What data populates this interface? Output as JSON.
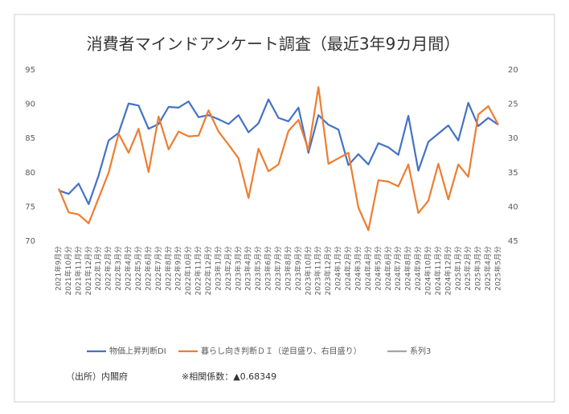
{
  "chart_data": {
    "type": "line",
    "title": "消費者マインドアンケート調査（最近3年9カ月間）",
    "categories": [
      "2021年9月分",
      "2021年10月分",
      "2021年11月分",
      "2021年12月分",
      "2022年1月分",
      "2022年2月分",
      "2022年3月分",
      "2022年4月分",
      "2022年5月分",
      "2022年6月分",
      "2022年7月分",
      "2022年8月分",
      "2022年9月分",
      "2022年10月分",
      "2022年11月分",
      "2022年12月分",
      "2023年1月分",
      "2023年2月分",
      "2023年3月分",
      "2023年4月分",
      "2023年5月分",
      "2023年6月分",
      "2023年7月分",
      "2023年8月分",
      "2023年9月分",
      "2023年10月分",
      "2023年11月分",
      "2023年12月分",
      "2024年1月分",
      "2024年2月分",
      "2024年3月分",
      "2024年4月分",
      "2024年5月分",
      "2024年6月分",
      "2024年7月分",
      "2024年8月分",
      "2024年9月分",
      "2024年10月分",
      "2024年11月分",
      "2024年12月分",
      "2025年1月分",
      "2025年2月分",
      "2025年3月分",
      "2025年4月分",
      "2025年5月分"
    ],
    "series": [
      {
        "name": "物価上昇判断DI",
        "color": "#4472c4",
        "axis": "y",
        "values": [
          77.4,
          76.9,
          78.4,
          75.4,
          79.6,
          84.7,
          85.8,
          90.1,
          89.8,
          86.4,
          87.1,
          89.6,
          89.5,
          90.4,
          88.1,
          88.4,
          87.8,
          87.1,
          88.4,
          85.9,
          87.2,
          90.7,
          88.0,
          87.5,
          89.5,
          82.9,
          88.4,
          87.0,
          86.3,
          81.1,
          82.7,
          81.2,
          84.3,
          83.7,
          82.6,
          88.3,
          80.3,
          84.5,
          85.7,
          86.9,
          84.7,
          90.2,
          86.8,
          88.0,
          87.0
        ]
      },
      {
        "name": "暮らし向き判断ＤＩ（逆目盛り、右目盛り）",
        "color": "#ed7d31",
        "axis": "y2",
        "values": [
          37.3,
          40.8,
          41.1,
          42.4,
          38.7,
          35.0,
          29.3,
          32.1,
          28.6,
          34.9,
          26.8,
          31.6,
          29.0,
          29.7,
          29.6,
          25.9,
          29.0,
          30.9,
          32.9,
          38.7,
          31.5,
          34.8,
          33.8,
          28.9,
          27.3,
          31.7,
          22.5,
          33.7,
          32.9,
          32.1,
          40.1,
          43.4,
          36.1,
          36.3,
          37.0,
          33.8,
          40.9,
          39.1,
          33.7,
          38.9,
          33.8,
          35.6,
          26.5,
          25.3,
          28.0
        ]
      },
      {
        "name": "系列3",
        "color": "#a5a5a5",
        "axis": "y",
        "values": [
          null,
          null,
          null,
          null,
          null,
          null,
          null,
          null,
          null,
          null,
          null,
          null,
          null,
          null,
          null,
          null,
          null,
          null,
          null,
          null,
          null,
          null,
          null,
          null,
          null,
          null,
          null,
          null,
          null,
          null,
          null,
          null,
          null,
          null,
          null,
          null,
          null,
          null,
          null,
          null,
          null,
          null,
          null,
          null,
          null
        ]
      }
    ],
    "ylim": [
      70,
      95
    ],
    "yticks": [
      70,
      75,
      80,
      85,
      90,
      95
    ],
    "y2lim": [
      45,
      20
    ],
    "y2ticks": [
      45,
      40,
      35,
      30,
      25,
      20
    ],
    "grid": false,
    "legend": "bottom",
    "source": "（出所）内閣府",
    "note": "※相関係数：▲0.68349"
  }
}
